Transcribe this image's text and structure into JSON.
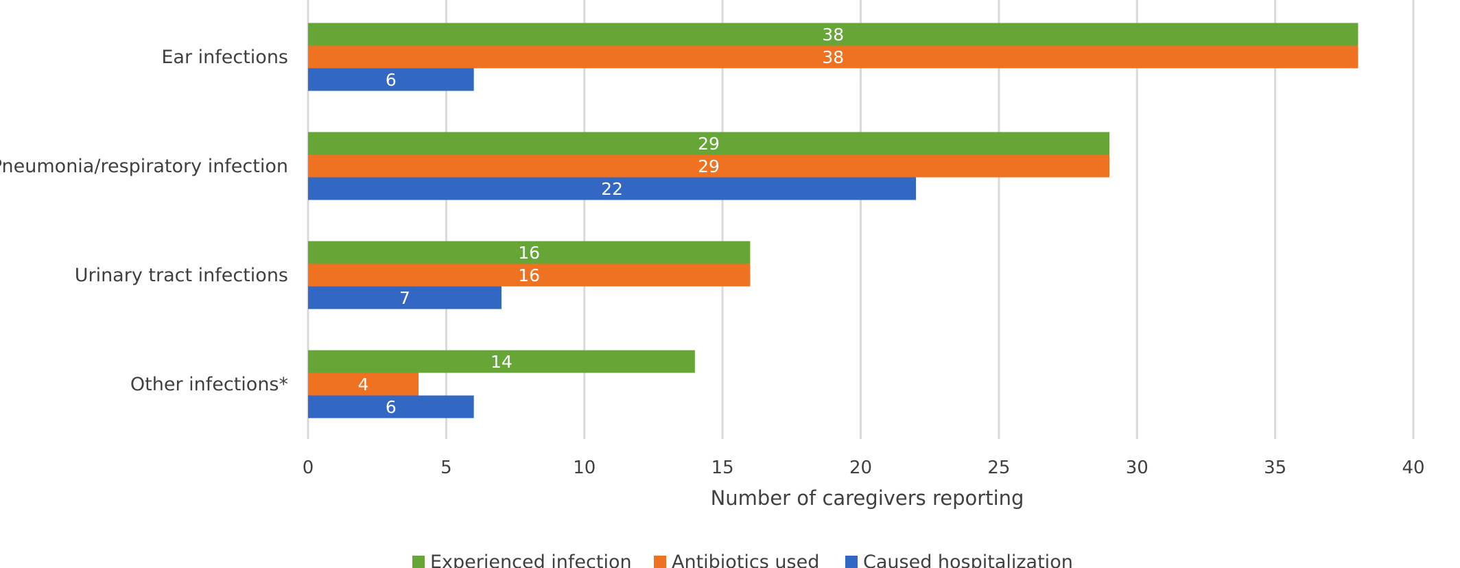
{
  "chart_data": {
    "type": "bar",
    "orientation": "horizontal",
    "categories": [
      "Ear infections",
      "Pneumonia/respiratory infection",
      "Urinary tract infections",
      "Other infections*"
    ],
    "series": [
      {
        "name": "Experienced infection",
        "color": "#66a637",
        "values": [
          38,
          29,
          16,
          14
        ]
      },
      {
        "name": "Antibiotics used",
        "color": "#ef7122",
        "values": [
          38,
          29,
          16,
          4
        ]
      },
      {
        "name": "Caused hospitalization",
        "color": "#3268c3",
        "values": [
          6,
          22,
          7,
          6
        ]
      }
    ],
    "xlabel": "Number of caregivers reporting",
    "xlim": [
      0,
      40
    ],
    "xticks": [
      0,
      5,
      10,
      15,
      20,
      25,
      30,
      35,
      40
    ],
    "grid": "vertical",
    "legend_position": "bottom"
  }
}
